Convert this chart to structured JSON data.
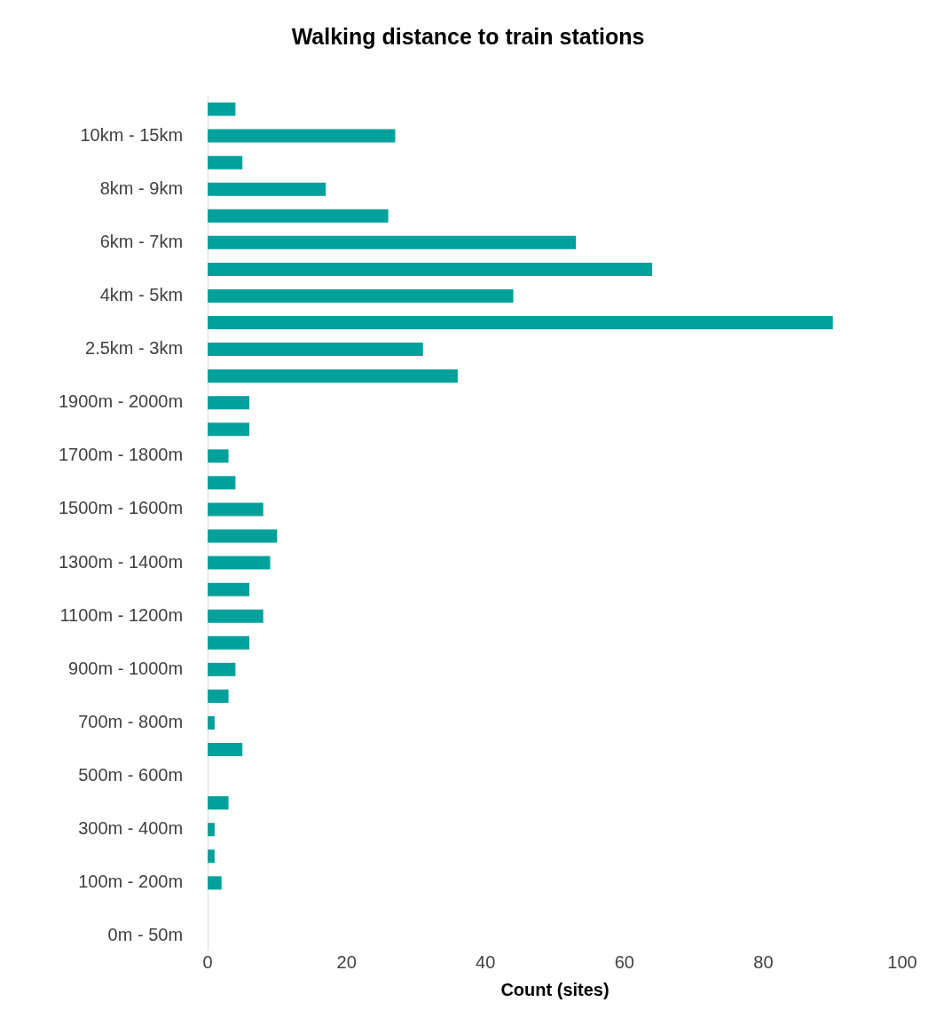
{
  "chart_data": {
    "type": "bar",
    "orientation": "horizontal",
    "title": "Walking distance to train stations",
    "xlabel": "Count (sites)",
    "categories": [
      null,
      "10km - 15km",
      null,
      "8km - 9km",
      null,
      "6km - 7km",
      null,
      "4km - 5km",
      null,
      "2.5km - 3km",
      null,
      "1900m - 2000m",
      null,
      "1700m - 1800m",
      null,
      "1500m - 1600m",
      null,
      "1300m - 1400m",
      null,
      "1100m - 1200m",
      null,
      "900m - 1000m",
      null,
      "700m - 800m",
      null,
      "500m - 600m",
      null,
      "300m - 400m",
      null,
      "100m - 200m",
      null,
      "0m - 50m"
    ],
    "values": [
      4,
      27,
      5,
      17,
      26,
      53,
      64,
      44,
      90,
      31,
      36,
      6,
      6,
      3,
      4,
      8,
      10,
      9,
      6,
      8,
      6,
      4,
      3,
      1,
      5,
      0,
      3,
      1,
      1,
      2,
      0,
      0
    ],
    "color": "#00a09b",
    "xlim": [
      0,
      100
    ],
    "xticks": [
      0,
      20,
      40,
      60,
      80,
      100
    ],
    "grid": false,
    "legend": false
  }
}
